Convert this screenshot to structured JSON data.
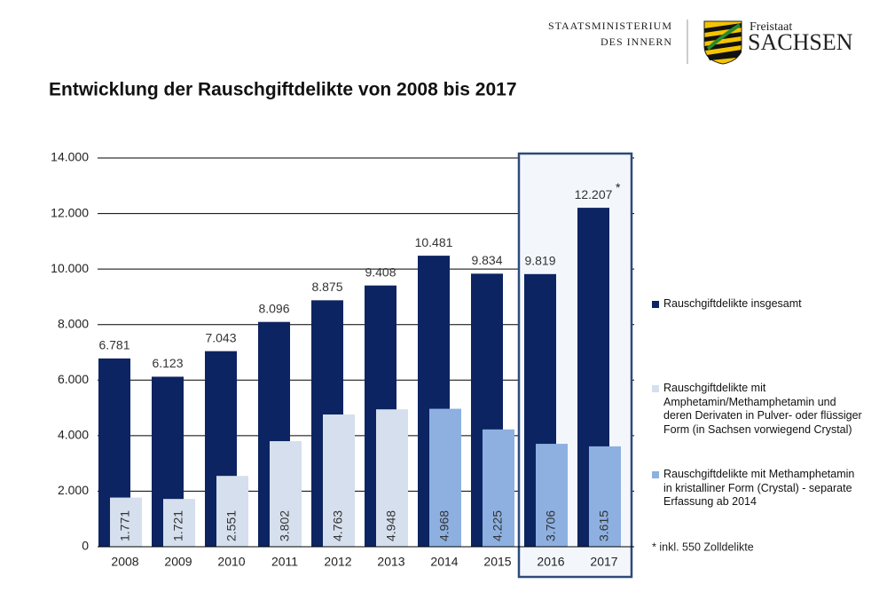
{
  "header": {
    "ministry": [
      "STAATSMINISTERIUM",
      "DES INNERN"
    ],
    "state": [
      "Freistaat",
      "SACHSEN"
    ]
  },
  "chart_data": {
    "type": "bar",
    "title": "Entwicklung der Rauschgiftdelikte von 2008 bis 2017",
    "categories": [
      "2008",
      "2009",
      "2010",
      "2011",
      "2012",
      "2013",
      "2014",
      "2015",
      "2016",
      "2017"
    ],
    "series": [
      {
        "name": "Rauschgiftdelikte insgesamt",
        "color": "#0c2461",
        "values": [
          6781,
          6123,
          7043,
          8096,
          8875,
          9408,
          10481,
          9834,
          9819,
          12207
        ],
        "value_labels": [
          "6.781",
          "6.123",
          "7.043",
          "8.096",
          "8.875",
          "9.408",
          "10.481",
          "9.834",
          "9.819",
          "12.207"
        ]
      },
      {
        "name": "Rauschgiftdelikte mit Amphetamin/Methamphetamin und deren Derivaten in Pulver- oder flüssiger Form (in Sachsen vorwiegend Crystal)",
        "color": "#d5dfed",
        "values": [
          1771,
          1721,
          2551,
          3802,
          4763,
          4948,
          null,
          null,
          null,
          null
        ],
        "value_labels": [
          "1.771",
          "1.721",
          "2.551",
          "3.802",
          "4.763",
          "4.948",
          null,
          null,
          null,
          null
        ]
      },
      {
        "name": "Rauschgiftdelikte mit Methamphetamin in kristalliner Form (Crystal) - separate Erfassung ab 2014",
        "color": "#8db0e1",
        "values": [
          null,
          null,
          null,
          null,
          null,
          null,
          4968,
          4225,
          3706,
          3615
        ],
        "value_labels": [
          null,
          null,
          null,
          null,
          null,
          null,
          "4.968",
          "4.225",
          "3.706",
          "3.615"
        ]
      }
    ],
    "footnote_marker": "*",
    "footnote": "* inkl. 550 Zolldelikte",
    "ylim": [
      0,
      14000
    ],
    "yticks": [
      0,
      {
        "value": 2000,
        "label": "2.000"
      },
      {
        "value": 4000,
        "label": "4.000"
      },
      {
        "value": 6000,
        "label": "6.000"
      },
      {
        "value": 8000,
        "label": "8.000"
      },
      {
        "value": 10000,
        "label": "10.000"
      },
      {
        "value": 12000,
        "label": "12.000"
      },
      {
        "value": 14000,
        "label": "14.000"
      }
    ],
    "grid": true
  }
}
